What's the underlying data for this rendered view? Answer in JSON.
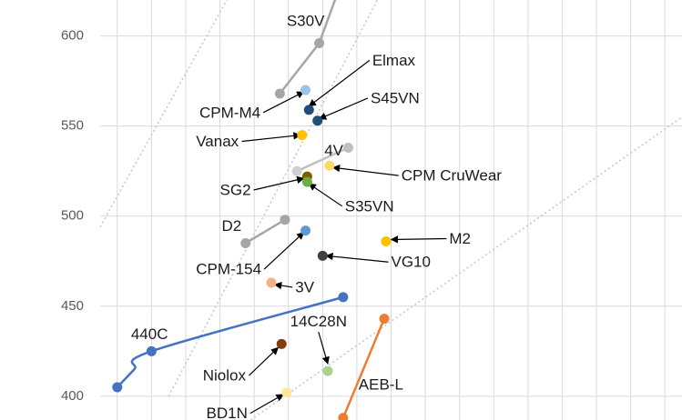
{
  "chart_data": {
    "type": "scatter",
    "title": "",
    "xlabel": "",
    "ylabel": "",
    "xlim": [
      0.5,
      17.5
    ],
    "ylim": [
      386.8,
      620
    ],
    "y_ticks": [
      400,
      450,
      500,
      550,
      600
    ],
    "x_gridlines": [
      1,
      2,
      3,
      4,
      5,
      6,
      7,
      8,
      9,
      10,
      11,
      12,
      13,
      14,
      15,
      16,
      17,
      18
    ],
    "grid": true,
    "diagonal_guides": [
      {
        "x1": 2.5,
        "y1": 400,
        "x2": 8.6,
        "y2": 620
      },
      {
        "x1": 0.5,
        "y1": 494,
        "x2": 4.2,
        "y2": 620
      },
      {
        "x1": 4.9,
        "y1": 386.8,
        "x2": 17.5,
        "y2": 555
      }
    ],
    "lines": [
      {
        "name": "S30V",
        "color": "#a6a6a6",
        "smooth": false,
        "x": [
          5.75,
          6.9,
          7.4
        ],
        "y": [
          568,
          596,
          622
        ]
      },
      {
        "name": "4V",
        "color": "#bfbfbf",
        "smooth": false,
        "x": [
          6.25,
          7.75
        ],
        "y": [
          525,
          538
        ]
      },
      {
        "name": "D2",
        "color": "#a6a6a6",
        "smooth": false,
        "x": [
          4.75,
          5.9
        ],
        "y": [
          485,
          498
        ]
      },
      {
        "name": "440C",
        "color": "#4472c4",
        "smooth": true,
        "x": [
          1.0,
          1.5,
          2.0,
          7.6
        ],
        "y": [
          405,
          415,
          425,
          455
        ]
      },
      {
        "name": "AEB-L",
        "color": "#ed7d31",
        "smooth": false,
        "x": [
          7.5,
          7.6,
          8.8
        ],
        "y": [
          382,
          388,
          443
        ]
      }
    ],
    "points": [
      {
        "name": "S30V",
        "x": 5.75,
        "y": 568,
        "color": "#a6a6a6"
      },
      {
        "name": "S30V",
        "x": 6.9,
        "y": 596,
        "color": "#a6a6a6"
      },
      {
        "name": "CPM-M4",
        "x": 6.5,
        "y": 570,
        "color": "#9dc3e6"
      },
      {
        "name": "Elmax",
        "x": 6.6,
        "y": 559,
        "color": "#1f4e79"
      },
      {
        "name": "S45VN",
        "x": 6.85,
        "y": 553,
        "color": "#1f4e79"
      },
      {
        "name": "Vanax",
        "x": 6.4,
        "y": 545,
        "color": "#ffc000"
      },
      {
        "name": "4V",
        "x": 6.25,
        "y": 525,
        "color": "#d0cece"
      },
      {
        "name": "4V",
        "x": 7.75,
        "y": 538,
        "color": "#bfbfbf"
      },
      {
        "name": "CPM CruWear",
        "x": 7.2,
        "y": 528,
        "color": "#ffd966"
      },
      {
        "name": "SG2",
        "x": 6.55,
        "y": 522,
        "color": "#7f6000"
      },
      {
        "name": "S35VN",
        "x": 6.55,
        "y": 519,
        "color": "#70ad47"
      },
      {
        "name": "D2",
        "x": 4.75,
        "y": 485,
        "color": "#a6a6a6"
      },
      {
        "name": "D2",
        "x": 5.9,
        "y": 498,
        "color": "#a6a6a6"
      },
      {
        "name": "CPM-154",
        "x": 6.5,
        "y": 492,
        "color": "#5b9bd5"
      },
      {
        "name": "M2",
        "x": 8.85,
        "y": 486,
        "color": "#ffc000"
      },
      {
        "name": "VG10",
        "x": 7.0,
        "y": 478,
        "color": "#404040"
      },
      {
        "name": "3V",
        "x": 5.5,
        "y": 463,
        "color": "#f4b183"
      },
      {
        "name": "440C",
        "x": 7.6,
        "y": 455,
        "color": "#4472c4"
      },
      {
        "name": "440C",
        "x": 2.0,
        "y": 425,
        "color": "#4472c4"
      },
      {
        "name": "440C",
        "x": 1.0,
        "y": 405,
        "color": "#4472c4"
      },
      {
        "name": "Niolox",
        "x": 5.8,
        "y": 429,
        "color": "#843c0c"
      },
      {
        "name": "14C28N",
        "x": 7.15,
        "y": 414,
        "color": "#a9d18e"
      },
      {
        "name": "BD1N",
        "x": 5.95,
        "y": 402,
        "color": "#ffe699"
      },
      {
        "name": "AEB-L",
        "x": 8.8,
        "y": 443,
        "color": "#ed7d31"
      },
      {
        "name": "AEB-L",
        "x": 7.6,
        "y": 388,
        "color": "#ed7d31"
      }
    ],
    "annotations": [
      {
        "text": "S30V",
        "x": 5.95,
        "y": 608,
        "arrow": false
      },
      {
        "text": "Elmax",
        "x": 8.45,
        "y": 586,
        "arrow": true,
        "ax": 6.6,
        "ay": 561
      },
      {
        "text": "S45VN",
        "x": 8.4,
        "y": 565,
        "arrow": true,
        "ax": 6.9,
        "ay": 554
      },
      {
        "text": "CPM-M4",
        "x": 3.4,
        "y": 557,
        "arrow": true,
        "ax": 6.45,
        "ay": 569
      },
      {
        "text": "Vanax",
        "x": 3.3,
        "y": 541,
        "arrow": true,
        "ax": 6.35,
        "ay": 545
      },
      {
        "text": "4V",
        "x": 7.05,
        "y": 536,
        "arrow": false
      },
      {
        "text": "CPM CruWear",
        "x": 9.3,
        "y": 522,
        "arrow": true,
        "ax": 7.3,
        "ay": 527
      },
      {
        "text": "SG2",
        "x": 4.0,
        "y": 514,
        "arrow": true,
        "ax": 6.45,
        "ay": 521
      },
      {
        "text": "S35VN",
        "x": 7.65,
        "y": 505,
        "arrow": true,
        "ax": 6.6,
        "ay": 518
      },
      {
        "text": "D2",
        "x": 4.05,
        "y": 494,
        "arrow": false
      },
      {
        "text": "M2",
        "x": 10.7,
        "y": 487,
        "arrow": true,
        "ax": 9.0,
        "ay": 487
      },
      {
        "text": "CPM-154",
        "x": 3.3,
        "y": 470,
        "arrow": true,
        "ax": 6.45,
        "ay": 491
      },
      {
        "text": "VG10",
        "x": 9.0,
        "y": 474,
        "arrow": true,
        "ax": 7.1,
        "ay": 478
      },
      {
        "text": "3V",
        "x": 6.2,
        "y": 460,
        "arrow": true,
        "ax": 5.6,
        "ay": 462
      },
      {
        "text": "440C",
        "x": 1.4,
        "y": 434,
        "arrow": false
      },
      {
        "text": "14C28N",
        "x": 6.05,
        "y": 441,
        "arrow": true,
        "ax": 7.15,
        "ay": 418
      },
      {
        "text": "Niolox",
        "x": 3.5,
        "y": 411,
        "arrow": true,
        "ax": 5.7,
        "ay": 427
      },
      {
        "text": "AEB-L",
        "x": 8.05,
        "y": 406,
        "arrow": false
      },
      {
        "text": "BD1N",
        "x": 3.6,
        "y": 390,
        "arrow": true,
        "ax": 5.85,
        "ay": 401
      }
    ]
  }
}
